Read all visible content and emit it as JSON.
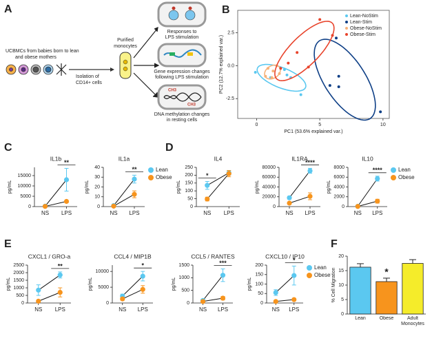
{
  "diagram": {
    "panel": "A",
    "source": [
      "UCBMCs from babies born to lean",
      "and obese mothers"
    ],
    "isolation": [
      "Isolation of",
      "CD14+ cells"
    ],
    "purified": [
      "Purified",
      "monocytes"
    ],
    "outcomes": [
      [
        "Responses to",
        "LPS stimulation"
      ],
      [
        "Gene expression changes",
        "following LPS stimulation"
      ],
      [
        "DNA methylation changes",
        "in resting cells"
      ]
    ],
    "methyl_labels": [
      "CH3",
      "CH3"
    ]
  },
  "chart_data": [
    {
      "type": "scatter",
      "panel": "B",
      "x_label": "PC1 (53.6% explained var.)",
      "y_label": "PC2 (12.7% explained var.)",
      "xlim": [
        -1.5,
        10.5
      ],
      "ylim": [
        -4,
        4.2
      ],
      "xticks": [
        0,
        5,
        10
      ],
      "yticks": [
        {
          "value": -2.5,
          "label": "-2.5"
        },
        {
          "value": 0,
          "label": "0.0"
        },
        2.5
      ],
      "legend": "top-right",
      "series": [
        {
          "name": "Lean-NoStim",
          "color": "#5bc8f0",
          "x": [
            2.2,
            2.4,
            1.1,
            2.7,
            3.5,
            -0.1
          ],
          "values": [
            -0.3,
            -0.7,
            -0.9,
            -0.9,
            -2.2,
            -0.5
          ]
        },
        {
          "name": "Lean-Stim",
          "color": "#0e3f86",
          "x": [
            6.3,
            6.5,
            6.5,
            5.8,
            9.8
          ],
          "values": [
            2.1,
            -0.8,
            -1.6,
            -1.5,
            -3.5
          ]
        },
        {
          "name": "Obese-NoStim",
          "color": "#f6b27a",
          "x": [
            0.9,
            1.3,
            1.6,
            0.7,
            1.8,
            1.2
          ],
          "values": [
            -0.2,
            -0.4,
            0,
            -0.8,
            -0.6,
            -0.9
          ]
        },
        {
          "name": "Obese-Stim",
          "color": "#e8432b",
          "x": [
            5,
            6,
            3.2,
            1.9,
            2.5,
            4.1
          ],
          "values": [
            3.5,
            2.3,
            1,
            -0.2,
            0.2,
            -0.1
          ]
        }
      ]
    },
    {
      "type": "line",
      "panel": "C",
      "title": "IL1b",
      "y_label": "pg/mL",
      "categories": [
        "NS",
        "LPS"
      ],
      "ylim": [
        0,
        19000
      ],
      "yticks": [
        0,
        5000,
        10000,
        15000
      ],
      "annotation": "**",
      "series": [
        {
          "name": "Lean",
          "color": "#5bc8f0",
          "values": [
            200,
            13000
          ],
          "errors": [
            200,
            5500
          ]
        },
        {
          "name": "Obese",
          "color": "#f7941d",
          "values": [
            100,
            2500
          ],
          "errors": [
            100,
            600
          ]
        }
      ]
    },
    {
      "type": "line",
      "title": "IL1a",
      "y_label": "pg/mL",
      "categories": [
        "NS",
        "LPS"
      ],
      "ylim": [
        0,
        40
      ],
      "yticks": [
        0,
        10,
        20,
        30,
        40
      ],
      "annotation": "**",
      "legend": "right",
      "series": [
        {
          "name": "Lean",
          "color": "#5bc8f0",
          "values": [
            1,
            28
          ],
          "errors": [
            0.5,
            4
          ]
        },
        {
          "name": "Obese",
          "color": "#f7941d",
          "values": [
            0.5,
            12.5
          ],
          "errors": [
            0.5,
            3.5
          ]
        }
      ]
    },
    {
      "type": "line",
      "panel": "D",
      "title": "IL4",
      "y_label": "pg/mL",
      "categories": [
        "NS",
        "LPS"
      ],
      "ylim": [
        0,
        250
      ],
      "yticks": [
        0,
        50,
        100,
        150,
        200,
        250
      ],
      "annotation": "*",
      "series": [
        {
          "name": "Lean",
          "color": "#5bc8f0",
          "values": [
            135,
            215
          ],
          "errors": [
            25,
            15
          ]
        },
        {
          "name": "Obese",
          "color": "#f7941d",
          "values": [
            48,
            210
          ],
          "errors": [
            12,
            20
          ]
        }
      ]
    },
    {
      "type": "line",
      "title": "IL1RA",
      "y_label": "pg/mL",
      "categories": [
        "NS",
        "LPS"
      ],
      "ylim": [
        0,
        80000
      ],
      "yticks": [
        0,
        20000,
        40000,
        60000,
        80000
      ],
      "annotation": "****",
      "series": [
        {
          "name": "Lean",
          "color": "#5bc8f0",
          "values": [
            18000,
            73000
          ],
          "errors": [
            3000,
            5000
          ]
        },
        {
          "name": "Obese",
          "color": "#f7941d",
          "values": [
            7000,
            21000
          ],
          "errors": [
            2000,
            7000
          ]
        }
      ]
    },
    {
      "type": "line",
      "title": "IL10",
      "y_label": "pg/mL",
      "categories": [
        "NS",
        "LPS"
      ],
      "ylim": [
        0,
        8000
      ],
      "yticks": [
        0,
        2000,
        4000,
        6000,
        8000
      ],
      "annotation": "****",
      "legend": "right",
      "series": [
        {
          "name": "Lean",
          "color": "#5bc8f0",
          "values": [
            50,
            5700
          ],
          "errors": [
            30,
            500
          ]
        },
        {
          "name": "Obese",
          "color": "#f7941d",
          "values": [
            30,
            1100
          ],
          "errors": [
            20,
            400
          ]
        }
      ]
    },
    {
      "type": "line",
      "panel": "E",
      "title": "CXCL1 / GRO-a",
      "y_label": "pg/mL",
      "categories": [
        "NS",
        "LPS"
      ],
      "ylim": [
        0,
        2500
      ],
      "yticks": [
        0,
        500,
        1000,
        1500,
        2000,
        2500
      ],
      "annotation": "**",
      "series": [
        {
          "name": "Lean",
          "color": "#5bc8f0",
          "values": [
            850,
            1850
          ],
          "errors": [
            350,
            200
          ]
        },
        {
          "name": "Obese",
          "color": "#f7941d",
          "values": [
            120,
            700
          ],
          "errors": [
            80,
            300
          ]
        }
      ]
    },
    {
      "type": "line",
      "title": "CCL4 / MIP1B",
      "y_label": "pg/mL",
      "categories": [
        "NS",
        "LPS"
      ],
      "ylim": [
        0,
        12000
      ],
      "yticks": [
        0,
        5000,
        10000
      ],
      "annotation": "*",
      "series": [
        {
          "name": "Lean",
          "color": "#5bc8f0",
          "values": [
            2200,
            8500
          ],
          "errors": [
            600,
            1500
          ]
        },
        {
          "name": "Obese",
          "color": "#f7941d",
          "values": [
            1300,
            4300
          ],
          "errors": [
            400,
            1200
          ]
        }
      ]
    },
    {
      "type": "line",
      "title": "CCL5 / RANTES",
      "y_label": "pg/mL",
      "categories": [
        "NS",
        "LPS"
      ],
      "ylim": [
        0,
        1500
      ],
      "yticks": [
        0,
        500,
        1000,
        1500
      ],
      "annotation": "***",
      "series": [
        {
          "name": "Lean",
          "color": "#5bc8f0",
          "values": [
            100,
            1100
          ],
          "errors": [
            40,
            250
          ]
        },
        {
          "name": "Obese",
          "color": "#f7941d",
          "values": [
            60,
            190
          ],
          "errors": [
            30,
            70
          ]
        }
      ]
    },
    {
      "type": "line",
      "title": "CXCL10 / IP10",
      "y_label": "pg/mL",
      "categories": [
        "NS",
        "LPS"
      ],
      "ylim": [
        0,
        200
      ],
      "yticks": [
        0,
        50,
        100,
        150,
        200
      ],
      "annotation": "*",
      "legend": "right",
      "series": [
        {
          "name": "Lean",
          "color": "#5bc8f0",
          "values": [
            55,
            145
          ],
          "errors": [
            15,
            50
          ]
        },
        {
          "name": "Obese",
          "color": "#f7941d",
          "values": [
            8,
            18
          ],
          "errors": [
            4,
            5
          ]
        }
      ]
    },
    {
      "type": "bar",
      "panel": "F",
      "y_label": "% Cell Migration",
      "categories": [
        "Lean",
        "Obese",
        "Adult Monocytes"
      ],
      "values": [
        16.2,
        11.2,
        17.5
      ],
      "errors": [
        1.2,
        1.2,
        1.3
      ],
      "colors": [
        "#5bc8f0",
        "#f7941d",
        "#f5ec2a"
      ],
      "ylim": [
        0,
        20
      ],
      "yticks": [
        0,
        5,
        10,
        15,
        20
      ],
      "annotation": "*"
    }
  ]
}
